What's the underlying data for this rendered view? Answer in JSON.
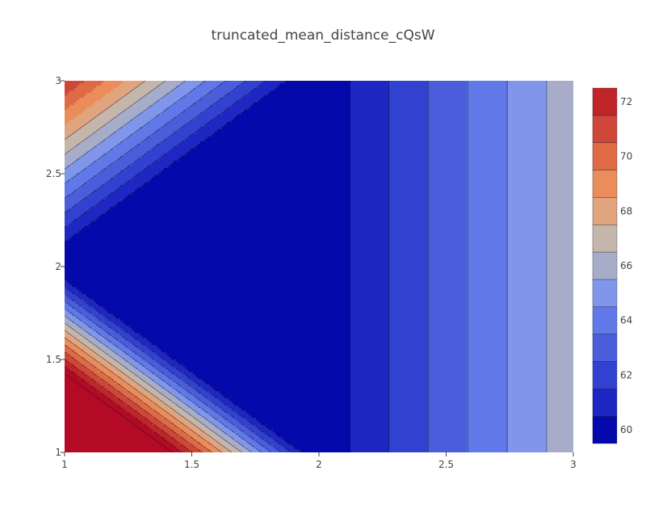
{
  "chart_data": {
    "type": "contour",
    "title": "truncated_mean_distance_cQsW",
    "xlabel": "",
    "ylabel": "",
    "xlim": [
      1,
      3
    ],
    "ylim": [
      1,
      3
    ],
    "x_ticks": [
      "1",
      "1.5",
      "2",
      "2.5",
      "3"
    ],
    "y_ticks": [
      "1",
      "1.5",
      "2",
      "2.5",
      "3"
    ],
    "x_tick_values": [
      1,
      1.5,
      2,
      2.5,
      3
    ],
    "y_tick_values": [
      1,
      1.5,
      2,
      2.5,
      3
    ],
    "contour_start": 59.5,
    "contour_step": 1,
    "zrange": [
      59.5,
      72.5
    ],
    "colorbar_ticks": [
      "60",
      "62",
      "64",
      "66",
      "68",
      "70",
      "72"
    ],
    "colorbar_tick_values": [
      60,
      62,
      64,
      66,
      68,
      70,
      72
    ],
    "surface": {
      "description_free_params": true,
      "base_value": 59.5,
      "x_band_start": 2.12,
      "x_band_width": 0.155,
      "diag_left_intercept": 1.93,
      "diag_left_step": 0.039,
      "diag_top_intercept": 2.13,
      "diag_top_step": 0.079
    },
    "colorscale": [
      "#0508aa",
      "#1e27c2",
      "#3242d0",
      "#4a5ddb",
      "#6078e8",
      "#7f96ea",
      "#a7adc8",
      "#c5b6ab",
      "#e0a47e",
      "#ea8d5a",
      "#de6b45",
      "#cf4739",
      "#c02628",
      "#b40a26"
    ]
  }
}
